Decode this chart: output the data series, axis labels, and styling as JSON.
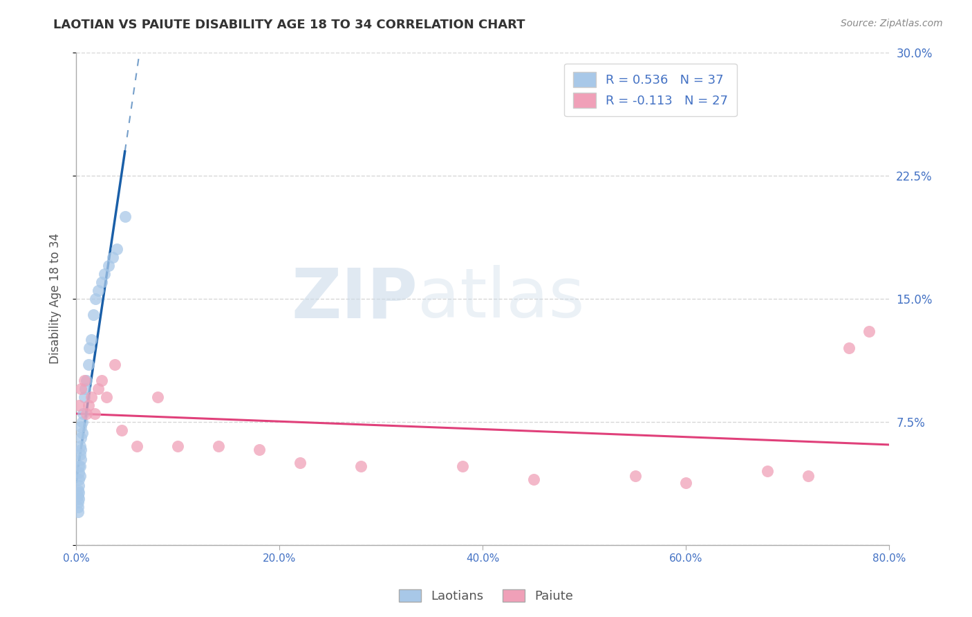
{
  "title": "LAOTIAN VS PAIUTE DISABILITY AGE 18 TO 34 CORRELATION CHART",
  "source": "Source: ZipAtlas.com",
  "ylabel": "Disability Age 18 to 34",
  "laotian_R": 0.536,
  "laotian_N": 37,
  "paiute_R": -0.113,
  "paiute_N": 27,
  "laotian_color": "#a8c8e8",
  "paiute_color": "#f0a0b8",
  "laotian_line_color": "#1a5fa8",
  "paiute_line_color": "#e0407a",
  "watermark_zip": "ZIP",
  "watermark_atlas": "atlas",
  "xlim": [
    0.0,
    0.8
  ],
  "ylim": [
    0.0,
    0.3
  ],
  "xtick_positions": [
    0.0,
    0.2,
    0.4,
    0.6,
    0.8
  ],
  "xtick_labels": [
    "0.0%",
    "20.0%",
    "40.0%",
    "60.0%",
    "80.0%"
  ],
  "ytick_positions": [
    0.0,
    0.075,
    0.15,
    0.225,
    0.3
  ],
  "ytick_labels_right": [
    "",
    "7.5%",
    "15.0%",
    "22.5%",
    "30.0%"
  ],
  "laotian_x": [
    0.002,
    0.002,
    0.002,
    0.002,
    0.002,
    0.003,
    0.003,
    0.003,
    0.003,
    0.003,
    0.003,
    0.004,
    0.004,
    0.004,
    0.004,
    0.005,
    0.005,
    0.005,
    0.005,
    0.006,
    0.006,
    0.007,
    0.008,
    0.009,
    0.01,
    0.012,
    0.013,
    0.015,
    0.017,
    0.019,
    0.022,
    0.025,
    0.028,
    0.032,
    0.036,
    0.04,
    0.048
  ],
  "laotian_y": [
    0.02,
    0.023,
    0.026,
    0.03,
    0.033,
    0.028,
    0.032,
    0.036,
    0.04,
    0.044,
    0.048,
    0.042,
    0.048,
    0.055,
    0.06,
    0.052,
    0.058,
    0.065,
    0.072,
    0.068,
    0.075,
    0.08,
    0.09,
    0.095,
    0.1,
    0.11,
    0.12,
    0.125,
    0.14,
    0.15,
    0.155,
    0.16,
    0.165,
    0.17,
    0.175,
    0.18,
    0.2
  ],
  "paiute_x": [
    0.003,
    0.005,
    0.008,
    0.01,
    0.012,
    0.015,
    0.018,
    0.022,
    0.025,
    0.03,
    0.038,
    0.045,
    0.06,
    0.08,
    0.1,
    0.14,
    0.18,
    0.22,
    0.28,
    0.38,
    0.45,
    0.55,
    0.6,
    0.68,
    0.72,
    0.76,
    0.78
  ],
  "paiute_y": [
    0.085,
    0.095,
    0.1,
    0.08,
    0.085,
    0.09,
    0.08,
    0.095,
    0.1,
    0.09,
    0.11,
    0.07,
    0.06,
    0.09,
    0.06,
    0.06,
    0.058,
    0.05,
    0.048,
    0.048,
    0.04,
    0.042,
    0.038,
    0.045,
    0.042,
    0.12,
    0.13
  ],
  "background_color": "#ffffff",
  "grid_color": "#cccccc"
}
